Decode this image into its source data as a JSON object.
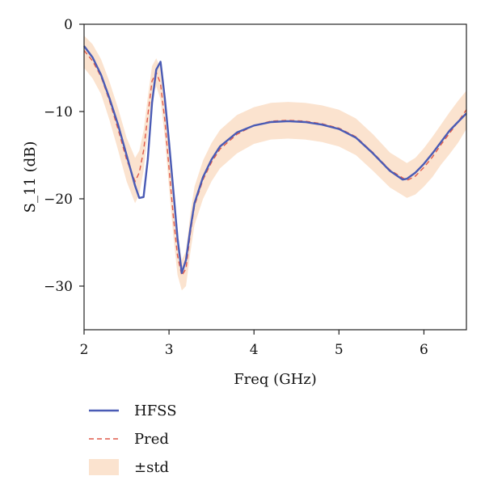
{
  "chart_data": {
    "type": "line",
    "title": "",
    "xlabel": "Freq (GHz)",
    "ylabel": "S_11 (dB)",
    "xlim": [
      2,
      6.5
    ],
    "ylim": [
      -35,
      0
    ],
    "x_ticks": [
      2,
      3,
      4,
      5,
      6
    ],
    "y_ticks": [
      0,
      -10,
      -20,
      -30
    ],
    "x_tick_labels": [
      "2",
      "3",
      "4",
      "5",
      "6"
    ],
    "y_tick_labels": [
      "0",
      "−10",
      "−20",
      "−30"
    ],
    "grid": false,
    "legend_position": "below plot, left",
    "series": [
      {
        "name": "HFSS",
        "style": "solid",
        "color": "#4a5bb5",
        "x": [
          2.0,
          2.1,
          2.2,
          2.3,
          2.4,
          2.5,
          2.6,
          2.65,
          2.7,
          2.75,
          2.8,
          2.85,
          2.9,
          2.95,
          3.0,
          3.05,
          3.1,
          3.15,
          3.2,
          3.25,
          3.3,
          3.4,
          3.5,
          3.6,
          3.8,
          4.0,
          4.2,
          4.4,
          4.6,
          4.8,
          5.0,
          5.2,
          5.4,
          5.6,
          5.75,
          5.8,
          5.9,
          6.0,
          6.1,
          6.2,
          6.3,
          6.4,
          6.5
        ],
        "values": [
          -2.5,
          -3.8,
          -5.8,
          -8.5,
          -11.5,
          -15.0,
          -18.5,
          -19.9,
          -19.8,
          -15.5,
          -9.0,
          -5.2,
          -4.3,
          -8.5,
          -13.5,
          -19.0,
          -24.5,
          -28.5,
          -27.0,
          -23.5,
          -20.5,
          -17.5,
          -15.5,
          -14.0,
          -12.4,
          -11.6,
          -11.2,
          -11.1,
          -11.2,
          -11.5,
          -12.0,
          -13.0,
          -14.8,
          -16.8,
          -17.8,
          -17.7,
          -17.0,
          -16.0,
          -14.8,
          -13.5,
          -12.2,
          -11.2,
          -10.2
        ]
      },
      {
        "name": "Pred",
        "style": "dashed",
        "color": "#e05a4a",
        "x": [
          2.0,
          2.1,
          2.2,
          2.3,
          2.4,
          2.5,
          2.6,
          2.65,
          2.7,
          2.75,
          2.8,
          2.85,
          2.9,
          2.95,
          3.0,
          3.05,
          3.1,
          3.15,
          3.2,
          3.25,
          3.3,
          3.4,
          3.5,
          3.6,
          3.8,
          4.0,
          4.2,
          4.4,
          4.6,
          4.8,
          5.0,
          5.2,
          5.4,
          5.6,
          5.8,
          5.9,
          6.0,
          6.1,
          6.2,
          6.3,
          6.4,
          6.5
        ],
        "values": [
          -3.0,
          -4.2,
          -6.0,
          -8.8,
          -12.0,
          -15.5,
          -18.0,
          -17.0,
          -14.5,
          -10.5,
          -6.5,
          -5.5,
          -6.8,
          -11.0,
          -16.5,
          -22.0,
          -26.5,
          -28.8,
          -28.0,
          -24.0,
          -20.8,
          -17.8,
          -15.8,
          -14.3,
          -12.6,
          -11.6,
          -11.1,
          -11.0,
          -11.1,
          -11.4,
          -11.9,
          -12.9,
          -14.7,
          -16.7,
          -17.9,
          -17.4,
          -16.4,
          -15.2,
          -13.8,
          -12.5,
          -11.2,
          -9.8
        ]
      }
    ],
    "band": {
      "name": "±std",
      "color": "#fbe3cf",
      "x": [
        2.0,
        2.1,
        2.2,
        2.3,
        2.4,
        2.5,
        2.6,
        2.65,
        2.7,
        2.75,
        2.8,
        2.85,
        2.9,
        2.95,
        3.0,
        3.05,
        3.1,
        3.15,
        3.2,
        3.25,
        3.3,
        3.4,
        3.5,
        3.6,
        3.8,
        4.0,
        4.2,
        4.4,
        4.6,
        4.8,
        5.0,
        5.2,
        5.4,
        5.6,
        5.8,
        5.9,
        6.0,
        6.1,
        6.2,
        6.3,
        6.4,
        6.5
      ],
      "upper": [
        -1.3,
        -2.3,
        -4.0,
        -6.6,
        -9.6,
        -13.0,
        -15.3,
        -14.5,
        -12.2,
        -8.4,
        -4.8,
        -3.9,
        -5.0,
        -9.0,
        -14.3,
        -19.8,
        -24.3,
        -27.0,
        -26.0,
        -21.8,
        -18.6,
        -15.6,
        -13.6,
        -12.1,
        -10.4,
        -9.5,
        -9.0,
        -8.9,
        -9.0,
        -9.3,
        -9.8,
        -10.8,
        -12.6,
        -14.7,
        -15.9,
        -15.3,
        -14.2,
        -12.9,
        -11.5,
        -10.1,
        -8.8,
        -7.6
      ],
      "lower": [
        -5.0,
        -6.2,
        -8.0,
        -11.0,
        -14.4,
        -18.0,
        -20.5,
        -19.5,
        -16.8,
        -12.6,
        -8.2,
        -7.1,
        -8.6,
        -13.0,
        -18.7,
        -24.2,
        -28.7,
        -30.5,
        -30.0,
        -26.2,
        -23.0,
        -20.0,
        -18.0,
        -16.5,
        -14.8,
        -13.7,
        -13.2,
        -13.1,
        -13.2,
        -13.5,
        -14.0,
        -15.0,
        -16.8,
        -18.7,
        -19.9,
        -19.5,
        -18.6,
        -17.5,
        -16.1,
        -14.9,
        -13.6,
        -12.0
      ]
    }
  }
}
